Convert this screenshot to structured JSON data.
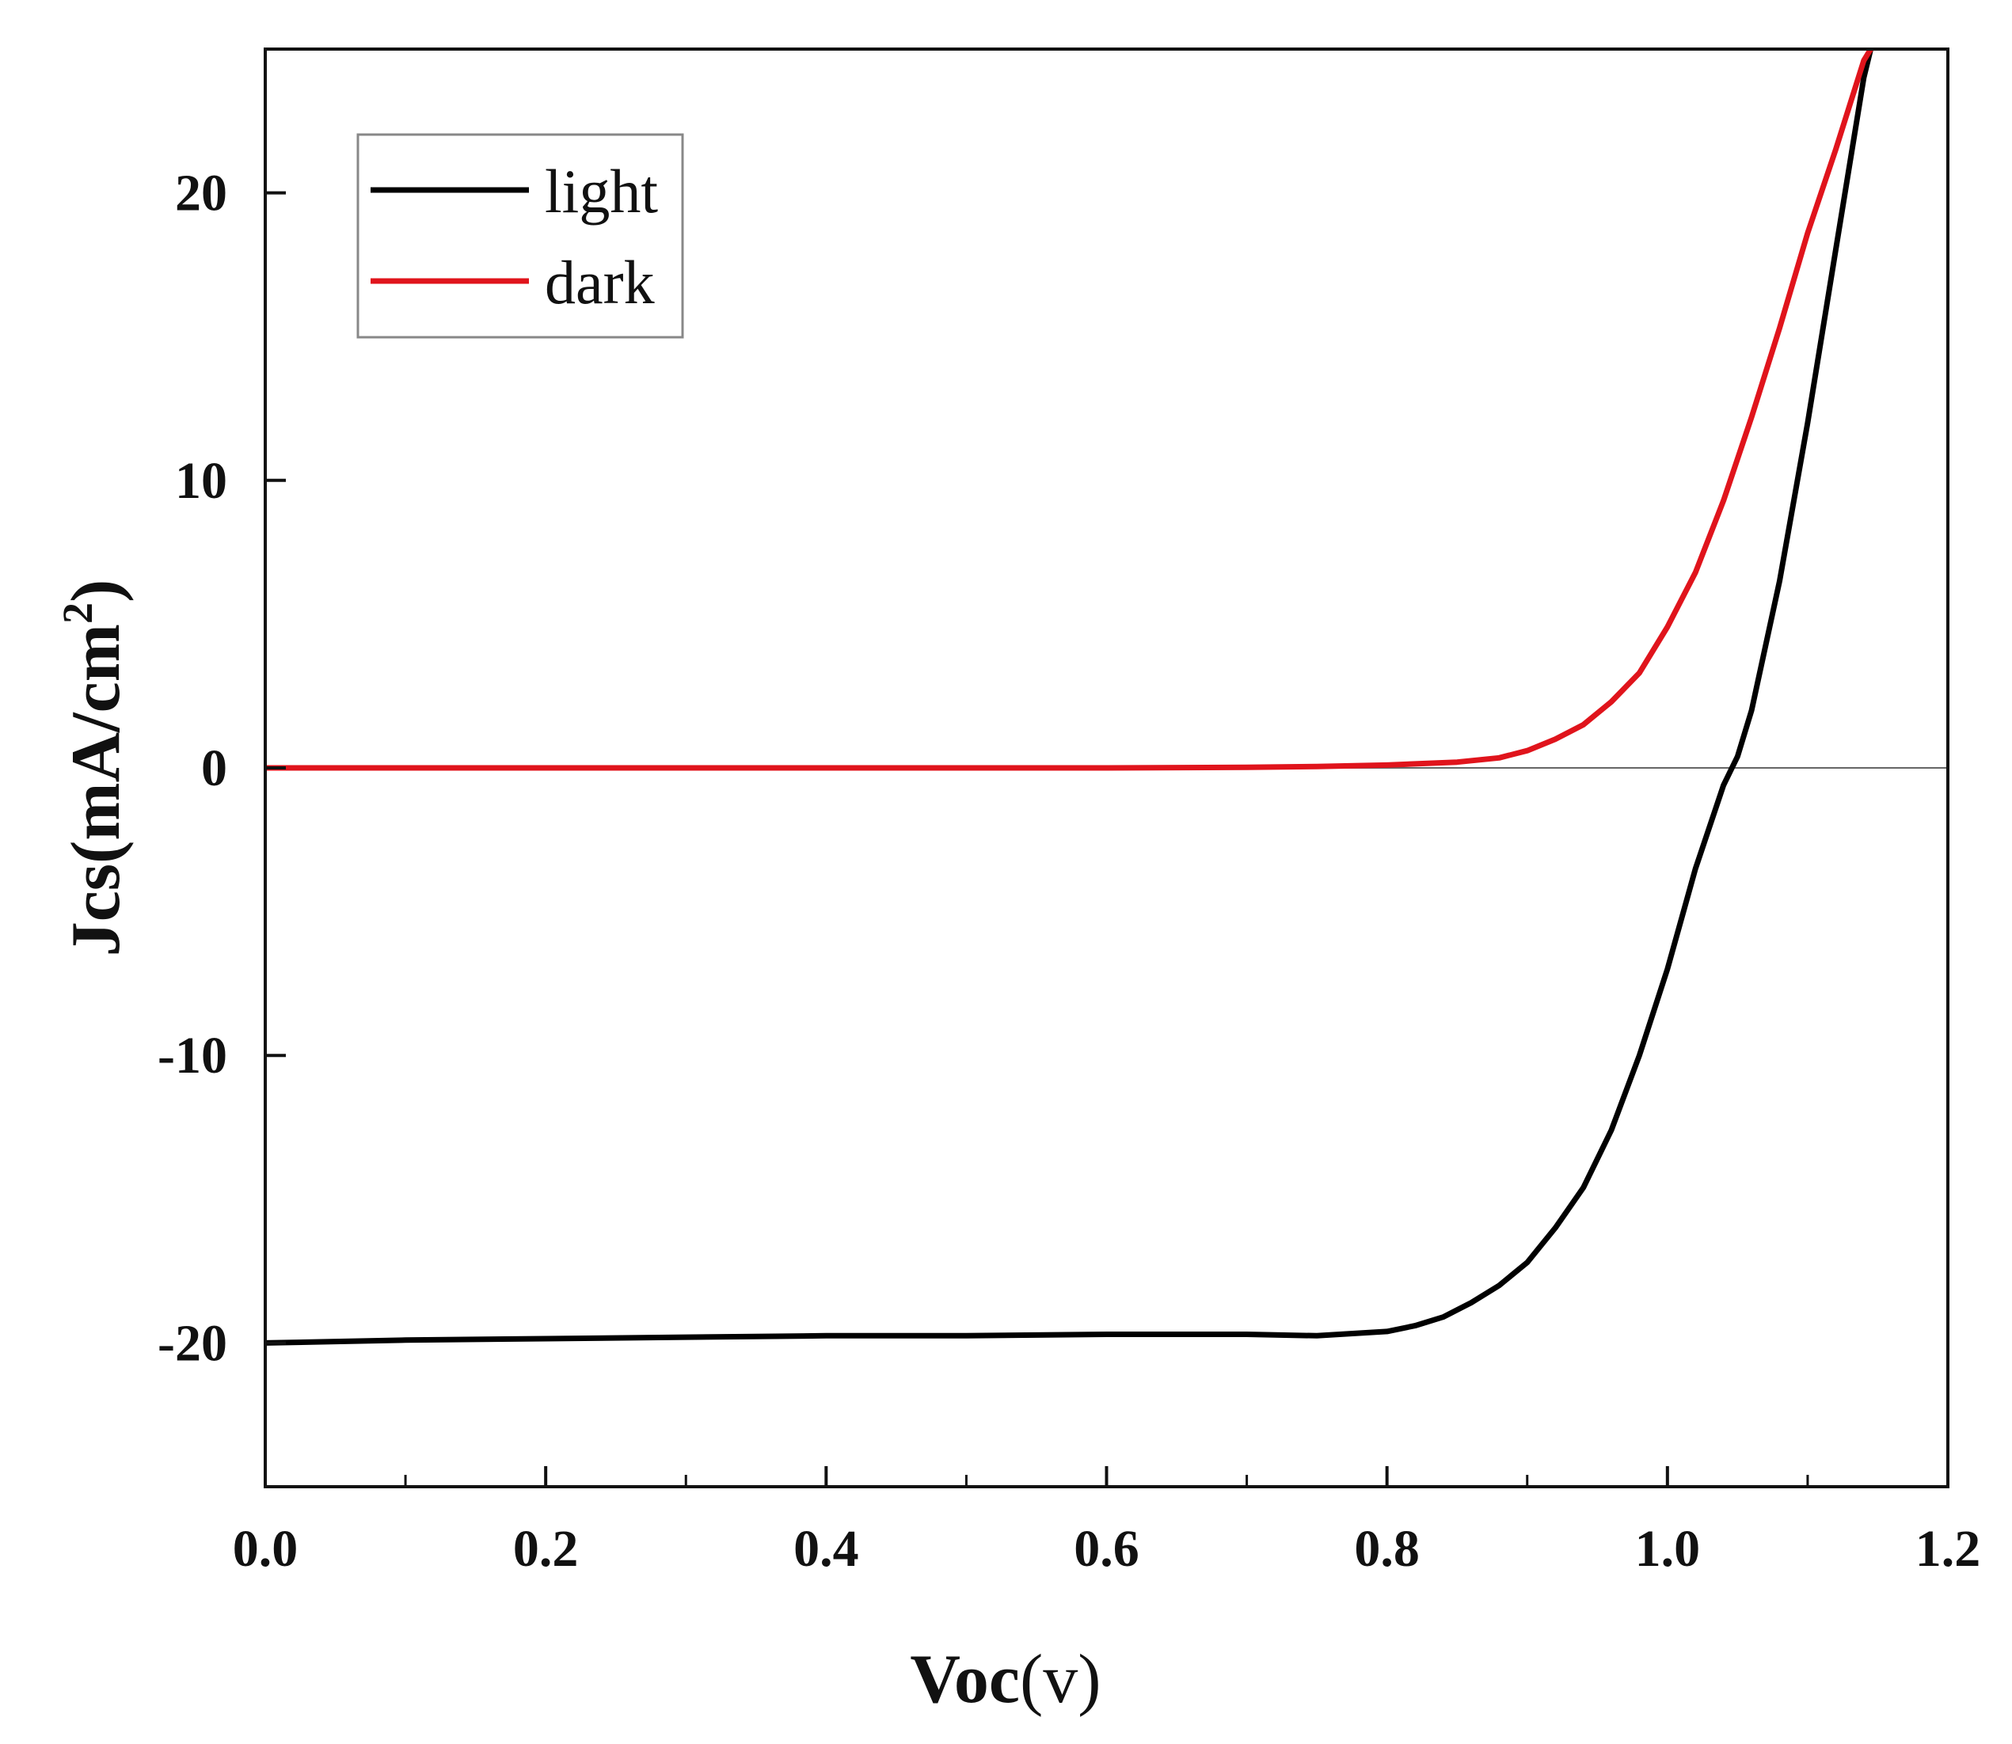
{
  "chart_data": {
    "type": "line",
    "title": "",
    "xlabel": {
      "main": "Voc",
      "unit": "(v)"
    },
    "ylabel": {
      "main": "Jcs(mA/cm",
      "sup": "2",
      "close": ")"
    },
    "xlim": [
      0.0,
      1.2
    ],
    "ylim": [
      -25,
      25
    ],
    "x_ticks": [
      "0.0",
      "0.2",
      "0.4",
      "0.6",
      "0.8",
      "1.0",
      "1.2"
    ],
    "y_ticks": [
      "-20",
      "-10",
      "0",
      "10",
      "20"
    ],
    "zero_line": true,
    "grid": false,
    "legend_position": "top-left",
    "series": [
      {
        "name": "light",
        "color": "#000000",
        "x": [
          0.0,
          0.1,
          0.2,
          0.3,
          0.4,
          0.5,
          0.6,
          0.7,
          0.75,
          0.8,
          0.82,
          0.84,
          0.86,
          0.88,
          0.9,
          0.92,
          0.94,
          0.96,
          0.98,
          1.0,
          1.02,
          1.04,
          1.05,
          1.06,
          1.08,
          1.1,
          1.12,
          1.14,
          1.145
        ],
        "y": [
          -20.0,
          -19.9,
          -19.85,
          -19.8,
          -19.75,
          -19.75,
          -19.7,
          -19.7,
          -19.75,
          -19.6,
          -19.4,
          -19.1,
          -18.6,
          -18.0,
          -17.2,
          -16.0,
          -14.6,
          -12.6,
          -10.0,
          -7.0,
          -3.5,
          -0.6,
          0.4,
          2.0,
          6.5,
          12.0,
          18.0,
          24.0,
          25.0
        ]
      },
      {
        "name": "dark",
        "color": "#e0141c",
        "x": [
          0.0,
          0.1,
          0.2,
          0.3,
          0.4,
          0.5,
          0.6,
          0.7,
          0.75,
          0.8,
          0.85,
          0.88,
          0.9,
          0.92,
          0.94,
          0.96,
          0.98,
          1.0,
          1.02,
          1.04,
          1.06,
          1.08,
          1.1,
          1.12,
          1.14,
          1.145
        ],
        "y": [
          0.0,
          0.0,
          0.0,
          0.0,
          0.0,
          0.0,
          0.0,
          0.02,
          0.05,
          0.1,
          0.2,
          0.35,
          0.6,
          1.0,
          1.5,
          2.3,
          3.3,
          4.9,
          6.8,
          9.3,
          12.2,
          15.3,
          18.6,
          21.5,
          24.6,
          25.0
        ]
      }
    ]
  }
}
